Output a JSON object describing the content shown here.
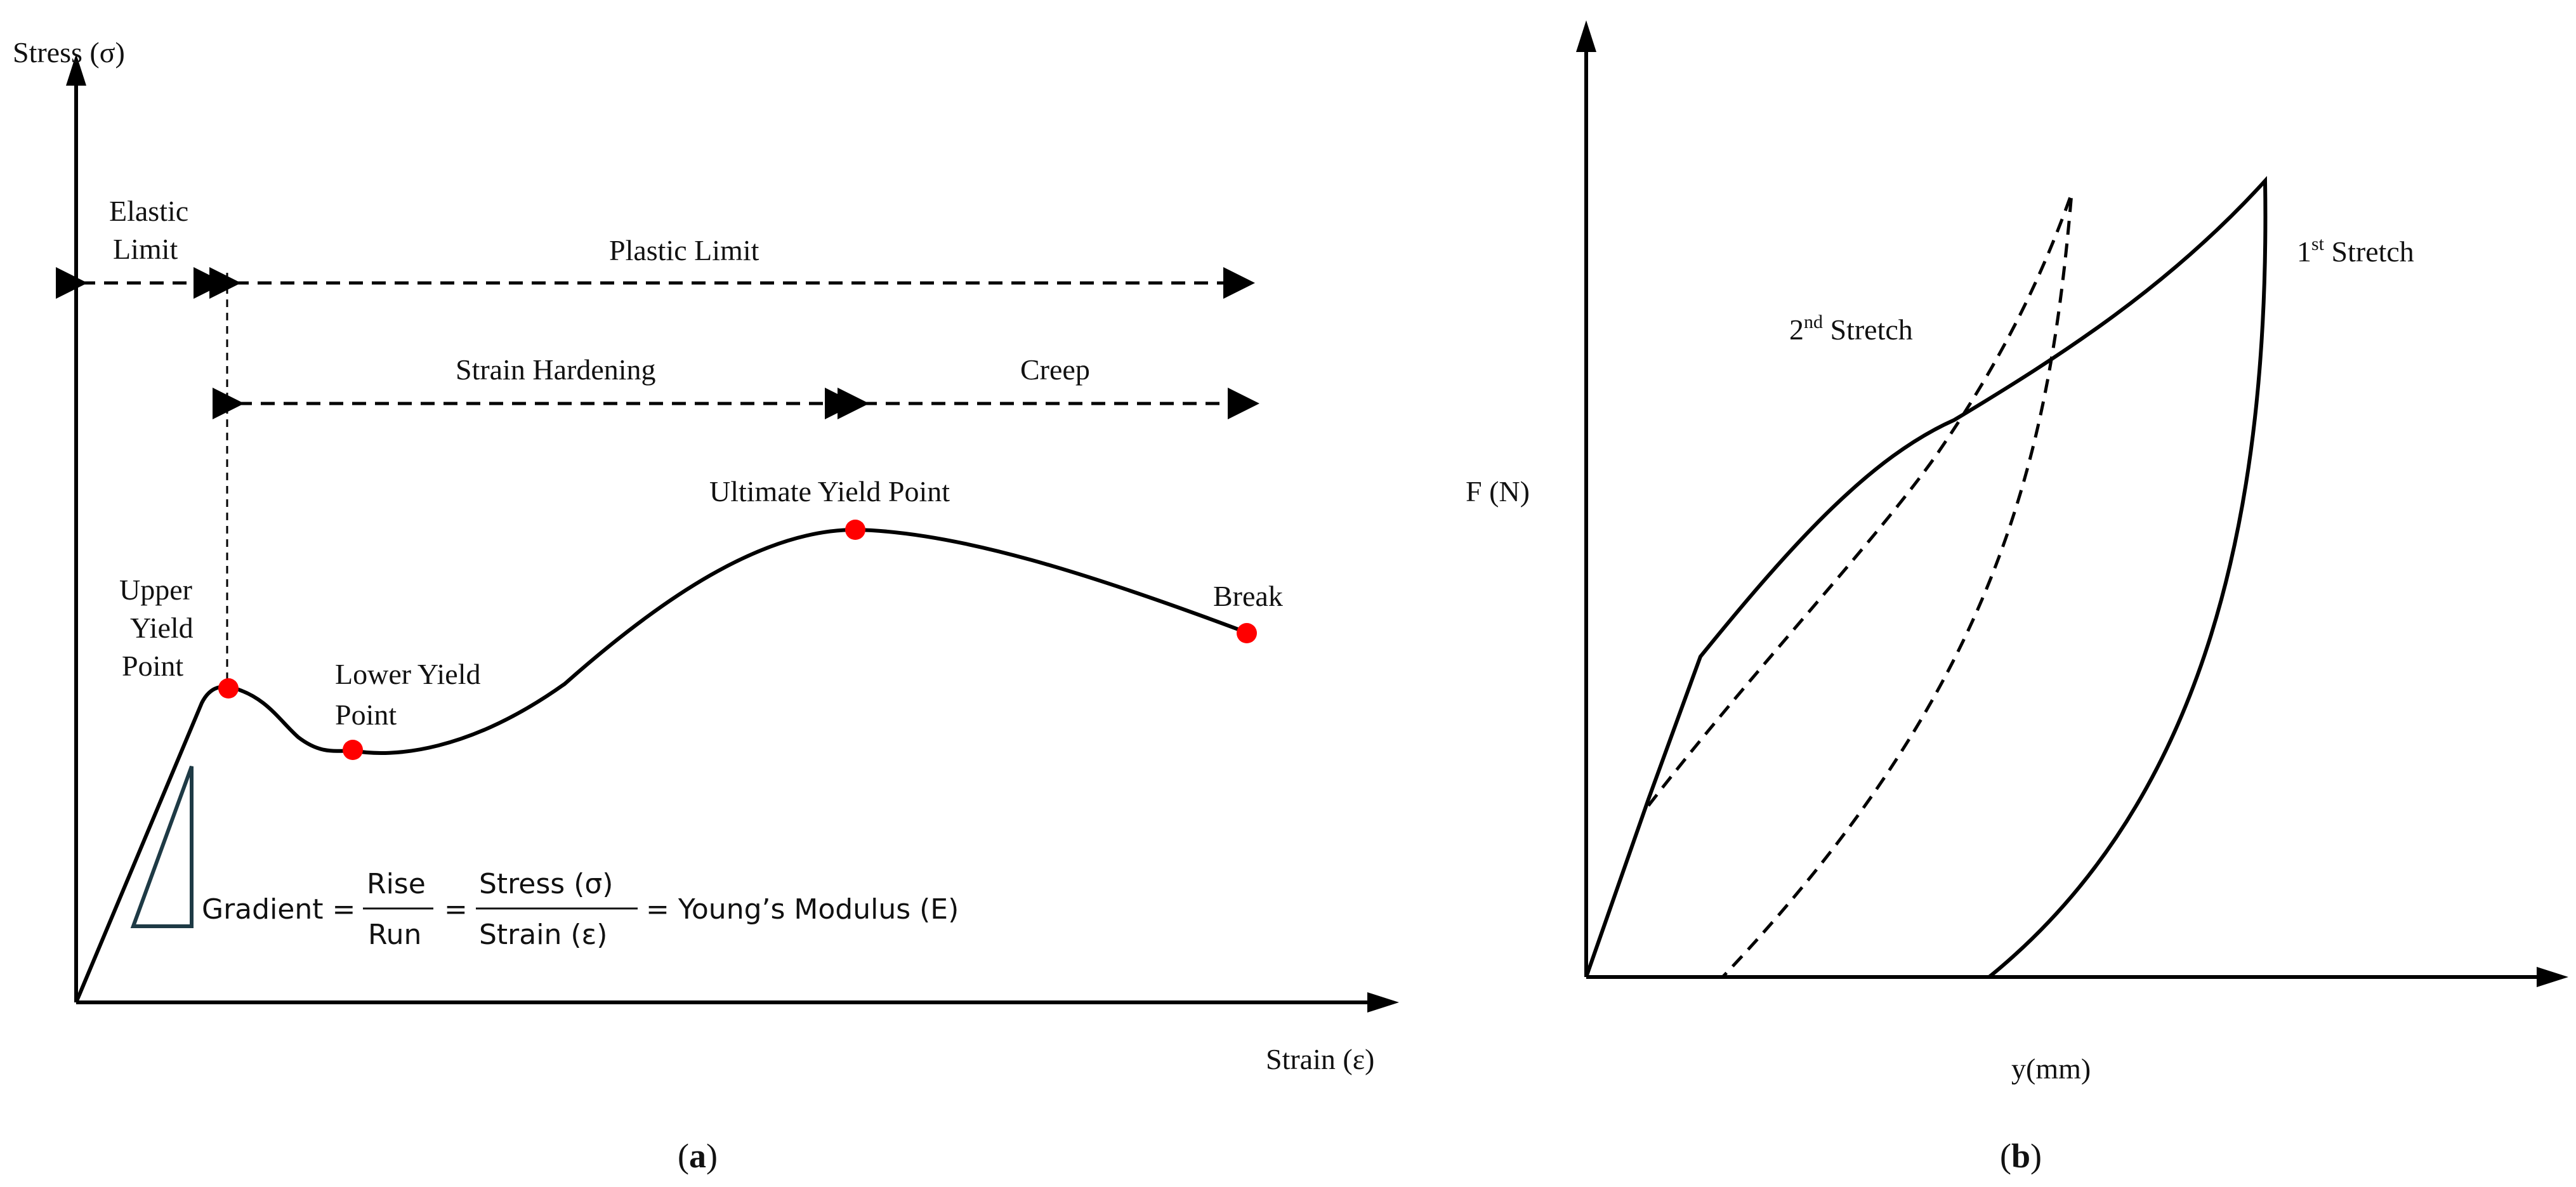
{
  "panel_a": {
    "y_axis_label": "Stress (σ)",
    "x_axis_label": "Strain (ε)",
    "ranges": {
      "elastic_limit_line1": "Elastic",
      "elastic_limit_line2": "Limit",
      "plastic_limit": "Plastic Limit",
      "strain_hardening": "Strain Hardening",
      "creep": "Creep"
    },
    "points": {
      "upper_yield_line1": "Upper",
      "upper_yield_line2": "Yield",
      "upper_yield_line3": "Point",
      "lower_yield_line1": "Lower Yield",
      "lower_yield_line2": "Point",
      "ultimate_yield": "Ultimate Yield Point",
      "break": "Break"
    },
    "equation": {
      "gradient": "Gradient =",
      "rise": "Rise",
      "run": "Run",
      "eq2": "=",
      "stress": "Stress (σ)",
      "strain": "Strain (ε)",
      "result": "= Young’s Modulus (E)"
    },
    "caption": "a",
    "point_color": "#ff0000",
    "triangle_color": "#1e3a45"
  },
  "panel_b": {
    "y_axis_label": "F (N)",
    "x_axis_label": "y(mm)",
    "first_stretch": {
      "prefix": "1",
      "sup": "st",
      "suffix": " Stretch"
    },
    "second_stretch": {
      "prefix": "2",
      "sup": "nd",
      "suffix": " Stretch"
    },
    "caption": "b"
  }
}
